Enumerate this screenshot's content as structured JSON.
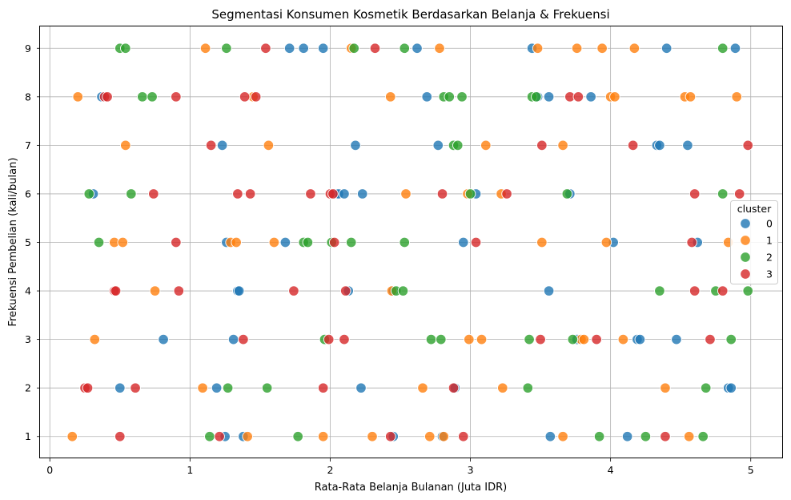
{
  "chart_data": {
    "type": "scatter",
    "title": "Segmentasi Konsumen Kosmetik Berdasarkan Belanja & Frekuensi",
    "xlabel": "Rata-Rata Belanja Bulanan (Juta IDR)",
    "ylabel": "Frekuensi Pembelian (kali/bulan)",
    "xlim": [
      -0.07,
      5.23
    ],
    "ylim": [
      0.55,
      9.45
    ],
    "xticks": [
      0,
      1,
      2,
      3,
      4,
      5
    ],
    "yticks": [
      1,
      2,
      3,
      4,
      5,
      6,
      7,
      8,
      9
    ],
    "grid": true,
    "legend": {
      "title": "cluster",
      "placement": "center-right"
    },
    "series": [
      {
        "name": "0",
        "color": "#1f77b4",
        "points": [
          [
            1.71,
            9
          ],
          [
            1.81,
            9
          ],
          [
            1.95,
            9
          ],
          [
            2.62,
            9
          ],
          [
            3.44,
            9
          ],
          [
            4.4,
            9
          ],
          [
            4.89,
            9
          ],
          [
            0.37,
            8
          ],
          [
            2.69,
            8
          ],
          [
            3.48,
            8
          ],
          [
            3.56,
            8
          ],
          [
            3.86,
            8
          ],
          [
            1.23,
            7
          ],
          [
            2.18,
            7
          ],
          [
            2.77,
            7
          ],
          [
            4.33,
            7
          ],
          [
            4.35,
            7
          ],
          [
            4.55,
            7
          ],
          [
            0.31,
            6
          ],
          [
            2.04,
            6
          ],
          [
            2.06,
            6
          ],
          [
            2.1,
            6
          ],
          [
            2.23,
            6
          ],
          [
            3.04,
            6
          ],
          [
            3.71,
            6
          ],
          [
            1.26,
            5
          ],
          [
            1.68,
            5
          ],
          [
            2.95,
            5
          ],
          [
            4.02,
            5
          ],
          [
            4.62,
            5
          ],
          [
            1.34,
            4
          ],
          [
            1.35,
            4
          ],
          [
            2.13,
            4
          ],
          [
            2.45,
            4
          ],
          [
            3.56,
            4
          ],
          [
            0.81,
            3
          ],
          [
            1.31,
            3
          ],
          [
            3.76,
            3
          ],
          [
            4.19,
            3
          ],
          [
            4.21,
            3
          ],
          [
            4.47,
            3
          ],
          [
            0.5,
            2
          ],
          [
            1.19,
            2
          ],
          [
            2.22,
            2
          ],
          [
            2.89,
            2
          ],
          [
            4.84,
            2
          ],
          [
            4.86,
            2
          ],
          [
            1.25,
            1
          ],
          [
            1.38,
            1
          ],
          [
            2.45,
            1
          ],
          [
            2.8,
            1
          ],
          [
            3.57,
            1
          ],
          [
            4.12,
            1
          ]
        ]
      },
      {
        "name": "1",
        "color": "#ff7f0e",
        "points": [
          [
            1.11,
            9
          ],
          [
            2.15,
            9
          ],
          [
            2.78,
            9
          ],
          [
            3.48,
            9
          ],
          [
            3.76,
            9
          ],
          [
            3.94,
            9
          ],
          [
            4.17,
            9
          ],
          [
            0.2,
            8
          ],
          [
            1.45,
            8
          ],
          [
            2.43,
            8
          ],
          [
            4.0,
            8
          ],
          [
            4.03,
            8
          ],
          [
            4.53,
            8
          ],
          [
            4.57,
            8
          ],
          [
            4.9,
            8
          ],
          [
            0.54,
            7
          ],
          [
            1.56,
            7
          ],
          [
            3.11,
            7
          ],
          [
            3.66,
            7
          ],
          [
            2.54,
            6
          ],
          [
            2.98,
            6
          ],
          [
            3.22,
            6
          ],
          [
            0.46,
            5
          ],
          [
            0.52,
            5
          ],
          [
            1.29,
            5
          ],
          [
            1.33,
            5
          ],
          [
            1.6,
            5
          ],
          [
            3.51,
            5
          ],
          [
            3.97,
            5
          ],
          [
            4.84,
            5
          ],
          [
            0.75,
            4
          ],
          [
            2.44,
            4
          ],
          [
            0.32,
            3
          ],
          [
            2.99,
            3
          ],
          [
            3.08,
            3
          ],
          [
            3.79,
            3
          ],
          [
            3.81,
            3
          ],
          [
            4.09,
            3
          ],
          [
            1.09,
            2
          ],
          [
            2.66,
            2
          ],
          [
            3.23,
            2
          ],
          [
            4.39,
            2
          ],
          [
            0.16,
            1
          ],
          [
            1.41,
            1
          ],
          [
            1.95,
            1
          ],
          [
            2.3,
            1
          ],
          [
            2.71,
            1
          ],
          [
            2.81,
            1
          ],
          [
            3.66,
            1
          ],
          [
            4.56,
            1
          ]
        ]
      },
      {
        "name": "2",
        "color": "#2ca02c",
        "points": [
          [
            0.5,
            9
          ],
          [
            0.54,
            9
          ],
          [
            1.26,
            9
          ],
          [
            2.17,
            9
          ],
          [
            2.53,
            9
          ],
          [
            4.8,
            9
          ],
          [
            0.66,
            8
          ],
          [
            0.73,
            8
          ],
          [
            2.81,
            8
          ],
          [
            2.85,
            8
          ],
          [
            2.94,
            8
          ],
          [
            3.44,
            8
          ],
          [
            3.47,
            8
          ],
          [
            2.88,
            7
          ],
          [
            2.91,
            7
          ],
          [
            0.28,
            6
          ],
          [
            0.58,
            6
          ],
          [
            3.0,
            6
          ],
          [
            3.69,
            6
          ],
          [
            4.8,
            6
          ],
          [
            0.35,
            5
          ],
          [
            1.81,
            5
          ],
          [
            1.84,
            5
          ],
          [
            2.01,
            5
          ],
          [
            2.15,
            5
          ],
          [
            2.53,
            5
          ],
          [
            2.47,
            4
          ],
          [
            2.52,
            4
          ],
          [
            4.35,
            4
          ],
          [
            4.75,
            4
          ],
          [
            4.98,
            4
          ],
          [
            1.96,
            3
          ],
          [
            2.72,
            3
          ],
          [
            2.79,
            3
          ],
          [
            3.42,
            3
          ],
          [
            3.73,
            3
          ],
          [
            4.86,
            3
          ],
          [
            1.27,
            2
          ],
          [
            1.55,
            2
          ],
          [
            3.41,
            2
          ],
          [
            4.68,
            2
          ],
          [
            1.14,
            1
          ],
          [
            1.77,
            1
          ],
          [
            3.92,
            1
          ],
          [
            4.25,
            1
          ],
          [
            4.66,
            1
          ]
        ]
      },
      {
        "name": "3",
        "color": "#d62728",
        "points": [
          [
            1.54,
            9
          ],
          [
            2.32,
            9
          ],
          [
            0.39,
            8
          ],
          [
            0.41,
            8
          ],
          [
            0.9,
            8
          ],
          [
            1.39,
            8
          ],
          [
            1.47,
            8
          ],
          [
            3.71,
            8
          ],
          [
            3.77,
            8
          ],
          [
            1.15,
            7
          ],
          [
            3.51,
            7
          ],
          [
            4.16,
            7
          ],
          [
            4.98,
            7
          ],
          [
            0.74,
            6
          ],
          [
            1.34,
            6
          ],
          [
            1.43,
            6
          ],
          [
            1.86,
            6
          ],
          [
            2.0,
            6
          ],
          [
            2.02,
            6
          ],
          [
            2.8,
            6
          ],
          [
            3.26,
            6
          ],
          [
            4.6,
            6
          ],
          [
            4.92,
            6
          ],
          [
            0.9,
            5
          ],
          [
            2.03,
            5
          ],
          [
            3.04,
            5
          ],
          [
            4.58,
            5
          ],
          [
            0.46,
            4
          ],
          [
            0.47,
            4
          ],
          [
            0.92,
            4
          ],
          [
            1.74,
            4
          ],
          [
            2.11,
            4
          ],
          [
            4.6,
            4
          ],
          [
            4.8,
            4
          ],
          [
            1.38,
            3
          ],
          [
            1.99,
            3
          ],
          [
            2.1,
            3
          ],
          [
            3.5,
            3
          ],
          [
            3.9,
            3
          ],
          [
            4.71,
            3
          ],
          [
            0.25,
            2
          ],
          [
            0.27,
            2
          ],
          [
            0.61,
            2
          ],
          [
            1.95,
            2
          ],
          [
            2.88,
            2
          ],
          [
            0.5,
            1
          ],
          [
            1.21,
            1
          ],
          [
            2.43,
            1
          ],
          [
            2.95,
            1
          ],
          [
            4.39,
            1
          ]
        ]
      }
    ]
  }
}
